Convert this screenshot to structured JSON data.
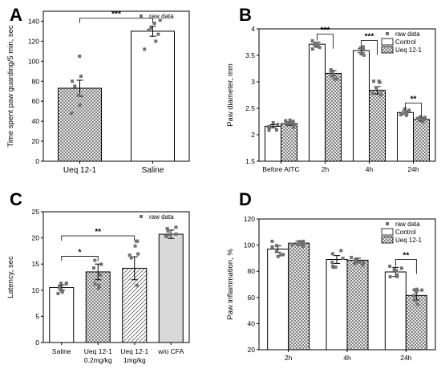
{
  "chart_data": [
    {
      "panel": "A",
      "type": "bar",
      "ylabel": "Time spent paw guarding/5 min, sec",
      "ylim": [
        0,
        150
      ],
      "yticks": [
        0,
        20,
        40,
        60,
        80,
        100,
        120,
        140
      ],
      "legend": [
        "raw data"
      ],
      "legend_position": "top-right",
      "categories": [
        "Ueq 12-1",
        "Saline"
      ],
      "values": [
        73,
        130
      ],
      "errors": [
        8,
        5
      ],
      "fills": [
        "hatch-cross",
        "white"
      ],
      "raw": [
        [
          105,
          85,
          80,
          75,
          66,
          56,
          48
        ],
        [
          141,
          138,
          133,
          131,
          127,
          120,
          112
        ]
      ],
      "significance": [
        {
          "from": 0,
          "to": 1,
          "label": "***"
        }
      ]
    },
    {
      "panel": "B",
      "type": "bar",
      "ylabel": "Paw diameter, mm",
      "ylim": [
        1.5,
        4.0
      ],
      "yticks": [
        1.5,
        2.0,
        2.5,
        3.0,
        3.5,
        4.0
      ],
      "legend": [
        "raw data",
        "Control",
        "Ueq 12-1"
      ],
      "legend_position": "top-right",
      "categories": [
        "Before AITC",
        "2h",
        "4h",
        "24h"
      ],
      "series": [
        {
          "name": "Control",
          "values": [
            2.16,
            3.71,
            3.59,
            2.42
          ],
          "errors": [
            0.03,
            0.04,
            0.04,
            0.03
          ]
        },
        {
          "name": "Ueq 12-1",
          "values": [
            2.21,
            3.16,
            2.84,
            2.29
          ],
          "errors": [
            0.03,
            0.05,
            0.07,
            0.03
          ]
        }
      ],
      "significance": [
        {
          "category": 1,
          "label": "***"
        },
        {
          "category": 2,
          "label": "***"
        },
        {
          "category": 3,
          "label": "**"
        }
      ]
    },
    {
      "panel": "C",
      "type": "bar",
      "ylabel": "Latency, sec",
      "ylim": [
        0,
        25
      ],
      "yticks": [
        0,
        5,
        10,
        15,
        20,
        25
      ],
      "legend": [
        "raw data"
      ],
      "legend_position": "top-right",
      "categories": [
        [
          "Saline"
        ],
        [
          "Ueq 12-1",
          "0.2mg/kg"
        ],
        [
          "Ueq 12-1",
          "1mg/kg"
        ],
        [
          "w/o CFA"
        ]
      ],
      "values": [
        10.5,
        13.5,
        14.2,
        20.7
      ],
      "errors": [
        0.5,
        1.5,
        2.2,
        0.8
      ],
      "fills": [
        "white",
        "hatch-cross",
        "hatch-diag",
        "gray"
      ],
      "significance": [
        {
          "from": 0,
          "to": 1,
          "label": "*"
        },
        {
          "from": 0,
          "to": 2,
          "label": "**"
        }
      ]
    },
    {
      "panel": "D",
      "type": "bar",
      "ylabel": "Paw inflammation, %",
      "ylim": [
        20,
        120
      ],
      "yticks": [
        20,
        40,
        60,
        80,
        100,
        120
      ],
      "legend": [
        "raw data",
        "Control",
        "Ueq 12-1"
      ],
      "legend_position": "top-right",
      "categories": [
        "2h",
        "4h",
        "24h"
      ],
      "series": [
        {
          "name": "Control",
          "values": [
            97,
            89,
            79.5
          ],
          "errors": [
            2.5,
            3,
            3.5
          ]
        },
        {
          "name": "Ueq 12-1",
          "values": [
            101.5,
            88.5,
            61.5
          ],
          "errors": [
            1.5,
            1.5,
            3.5
          ]
        }
      ],
      "significance": [
        {
          "category": 2,
          "label": "**"
        }
      ]
    }
  ]
}
